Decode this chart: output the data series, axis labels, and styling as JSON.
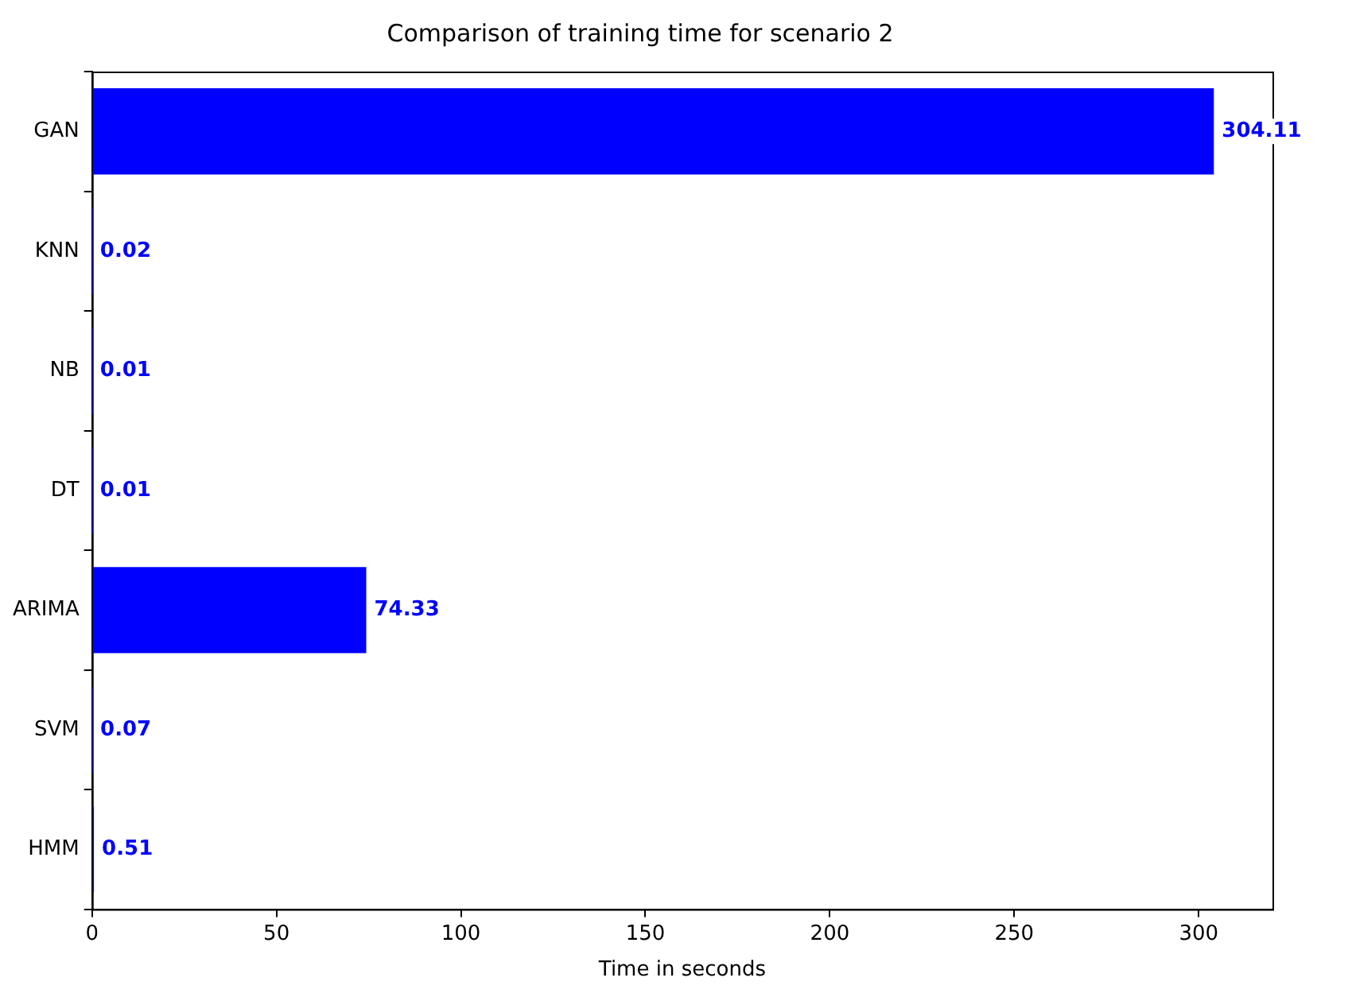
{
  "chart_data": {
    "type": "bar",
    "orientation": "horizontal",
    "title": "Comparison of training time for scenario 2",
    "xlabel": "Time in seconds",
    "categories": [
      "GAN",
      "KNN",
      "NB",
      "DT",
      "ARIMA",
      "SVM",
      "HMM"
    ],
    "values": [
      304.11,
      0.02,
      0.01,
      0.01,
      74.33,
      0.07,
      0.51
    ],
    "color": "#0000ff",
    "xlim": [
      0,
      320
    ],
    "xticks": [
      0,
      50,
      100,
      150,
      200,
      250,
      300
    ],
    "grid": false,
    "legend": false,
    "data_labels": true
  }
}
